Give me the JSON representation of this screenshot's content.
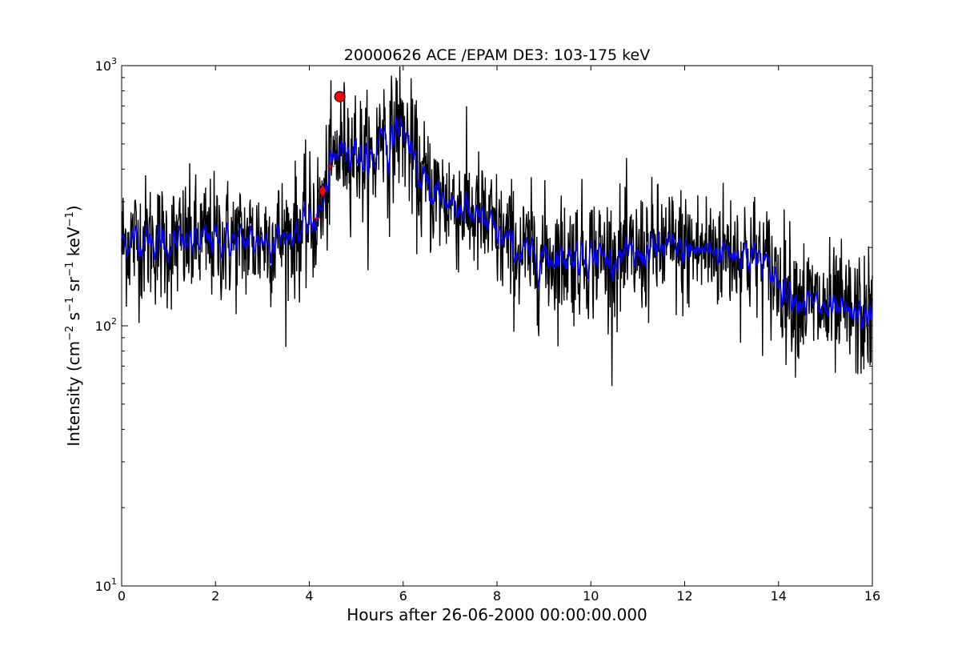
{
  "chart_data": {
    "type": "line",
    "title": "20000626 ACE /EPAM DE3: 103-175 keV",
    "xlabel": "Hours after 26-06-2000 00:00:00.000",
    "ylabel": {
      "prefix": "Intensity (cm",
      "sup1": "−2",
      "mid1": " s",
      "sup2": "−1",
      "mid2": " sr",
      "sup3": "−1",
      "mid3": " keV",
      "sup4": "−1",
      "suffix": ")"
    },
    "xlim": [
      0,
      16
    ],
    "ylim": [
      10,
      1000
    ],
    "yscale": "log",
    "xticks": [
      0,
      2,
      4,
      6,
      8,
      10,
      12,
      14,
      16
    ],
    "yticks": [
      {
        "value": 10,
        "base": "10",
        "exp": "1"
      },
      {
        "value": 100,
        "base": "10",
        "exp": "2"
      },
      {
        "value": 1000,
        "base": "10",
        "exp": "3"
      }
    ],
    "grid": false,
    "series": [
      {
        "role": "raw",
        "color": "#000000",
        "anchors": [
          [
            0,
            210
          ],
          [
            0.5,
            215
          ],
          [
            1,
            205
          ],
          [
            1.5,
            210
          ],
          [
            2,
            215
          ],
          [
            2.5,
            210
          ],
          [
            3,
            215
          ],
          [
            3.5,
            220
          ],
          [
            3.8,
            235
          ],
          [
            4.1,
            255
          ],
          [
            4.3,
            290
          ],
          [
            4.45,
            400
          ],
          [
            4.6,
            460
          ],
          [
            4.8,
            500
          ],
          [
            5.0,
            480
          ],
          [
            5.2,
            420
          ],
          [
            5.4,
            430
          ],
          [
            5.55,
            620
          ],
          [
            5.7,
            450
          ],
          [
            5.85,
            600
          ],
          [
            6.0,
            560
          ],
          [
            6.15,
            480
          ],
          [
            6.3,
            380
          ],
          [
            6.6,
            330
          ],
          [
            7.0,
            300
          ],
          [
            7.5,
            270
          ],
          [
            8.0,
            225
          ],
          [
            8.5,
            190
          ],
          [
            9.0,
            185
          ],
          [
            9.5,
            185
          ],
          [
            10.0,
            190
          ],
          [
            10.5,
            180
          ],
          [
            11.0,
            185
          ],
          [
            11.5,
            200
          ],
          [
            12.0,
            195
          ],
          [
            12.5,
            195
          ],
          [
            13.0,
            195
          ],
          [
            13.5,
            185
          ],
          [
            14.0,
            150
          ],
          [
            14.5,
            125
          ],
          [
            15.0,
            115
          ],
          [
            15.5,
            110
          ],
          [
            16.0,
            108
          ]
        ],
        "noise_sigma": 0.28
      },
      {
        "role": "smoothed",
        "color": "#0000ff",
        "anchors": [
          [
            0,
            210
          ],
          [
            0.5,
            215
          ],
          [
            1,
            205
          ],
          [
            1.5,
            210
          ],
          [
            2,
            215
          ],
          [
            2.5,
            210
          ],
          [
            3,
            215
          ],
          [
            3.5,
            220
          ],
          [
            3.8,
            235
          ],
          [
            4.1,
            255
          ],
          [
            4.3,
            290
          ],
          [
            4.45,
            400
          ],
          [
            4.6,
            460
          ],
          [
            4.8,
            500
          ],
          [
            5.0,
            480
          ],
          [
            5.2,
            420
          ],
          [
            5.4,
            430
          ],
          [
            5.55,
            620
          ],
          [
            5.7,
            450
          ],
          [
            5.85,
            600
          ],
          [
            6.0,
            560
          ],
          [
            6.15,
            480
          ],
          [
            6.3,
            380
          ],
          [
            6.6,
            330
          ],
          [
            7.0,
            300
          ],
          [
            7.5,
            270
          ],
          [
            8.0,
            225
          ],
          [
            8.5,
            190
          ],
          [
            9.0,
            185
          ],
          [
            9.5,
            185
          ],
          [
            10.0,
            190
          ],
          [
            10.5,
            180
          ],
          [
            11.0,
            185
          ],
          [
            11.5,
            200
          ],
          [
            12.0,
            195
          ],
          [
            12.5,
            195
          ],
          [
            13.0,
            195
          ],
          [
            13.5,
            185
          ],
          [
            14.0,
            150
          ],
          [
            14.5,
            125
          ],
          [
            15.0,
            115
          ],
          [
            15.5,
            110
          ],
          [
            16.0,
            108
          ]
        ],
        "noise_sigma": 0.12
      }
    ],
    "markers": [
      {
        "shape": "circle",
        "x": 4.65,
        "y": 760,
        "color": "#ff0000"
      },
      {
        "shape": "diamond",
        "x": 4.28,
        "y": 330,
        "color": "#ff0000"
      },
      {
        "shape": "plus",
        "x": 4.15,
        "y": 260,
        "color": "#ff0000"
      },
      {
        "shape": "plus",
        "x": 4.45,
        "y": 410,
        "color": "#ff0000"
      }
    ]
  }
}
